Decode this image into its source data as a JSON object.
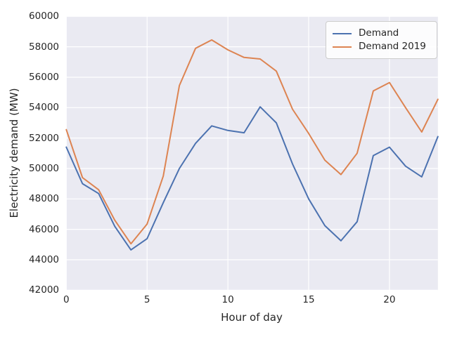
{
  "chart_data": {
    "type": "line",
    "title": "",
    "xlabel": "Hour of day",
    "ylabel": "Electricity demand (MW)",
    "x": [
      0,
      1,
      2,
      3,
      4,
      5,
      6,
      7,
      8,
      9,
      10,
      11,
      12,
      13,
      14,
      15,
      16,
      17,
      18,
      19,
      20,
      21,
      22,
      23
    ],
    "series": [
      {
        "name": "Demand",
        "color": "#4C72B0",
        "values": [
          51400,
          49000,
          48350,
          46200,
          44650,
          45390,
          47750,
          50000,
          51650,
          52800,
          52500,
          52350,
          54050,
          53000,
          50300,
          48000,
          46240,
          45250,
          46500,
          50850,
          51400,
          50150,
          49450,
          52100
        ]
      },
      {
        "name": "Demand 2019",
        "color": "#DD8452",
        "values": [
          52550,
          49400,
          48600,
          46600,
          45050,
          46350,
          49500,
          55450,
          57900,
          58450,
          57800,
          57300,
          57200,
          56400,
          53900,
          52300,
          50550,
          49600,
          51000,
          55100,
          55650,
          54000,
          52400,
          54550
        ]
      }
    ],
    "xlim": [
      0,
      23
    ],
    "ylim": [
      42000,
      60000
    ],
    "xticks": [
      0,
      5,
      10,
      15,
      20
    ],
    "yticks": [
      42000,
      44000,
      46000,
      48000,
      50000,
      52000,
      54000,
      56000,
      58000,
      60000
    ],
    "grid": true,
    "legend_position": "upper right",
    "plot_background": "#EAEAF2",
    "grid_color": "#FFFFFF",
    "text_color": "#262626"
  }
}
